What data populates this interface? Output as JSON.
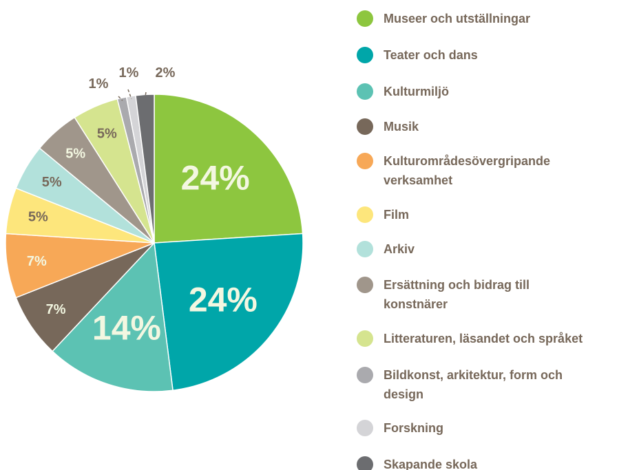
{
  "chart_data": {
    "type": "pie",
    "categories": [
      "Museer och utställningar",
      "Teater och dans",
      "Kulturmiljö",
      "Musik",
      "Kulturområdesövergripande verksamhet",
      "Film",
      "Arkiv",
      "Ersättning och bidrag till konstnärer",
      "Litteraturen, läsandet och språket",
      "Bildkonst, arkitektur, form och design",
      "Forskning",
      "Skapande skola"
    ],
    "values": [
      24,
      24,
      14,
      7,
      7,
      5,
      5,
      5,
      5,
      1,
      1,
      2
    ],
    "value_labels": [
      "24%",
      "24%",
      "14%",
      "7%",
      "7%",
      "5%",
      "5%",
      "5%",
      "5%",
      "1%",
      "1%",
      "2%"
    ],
    "colors": [
      "#8dc63f",
      "#00a6a9",
      "#5cc2b3",
      "#77685a",
      "#f7a857",
      "#fde67c",
      "#b2e1db",
      "#a0968b",
      "#d5e48f",
      "#aaaaae",
      "#d4d4d7",
      "#6c6d70"
    ],
    "legend": "right"
  }
}
